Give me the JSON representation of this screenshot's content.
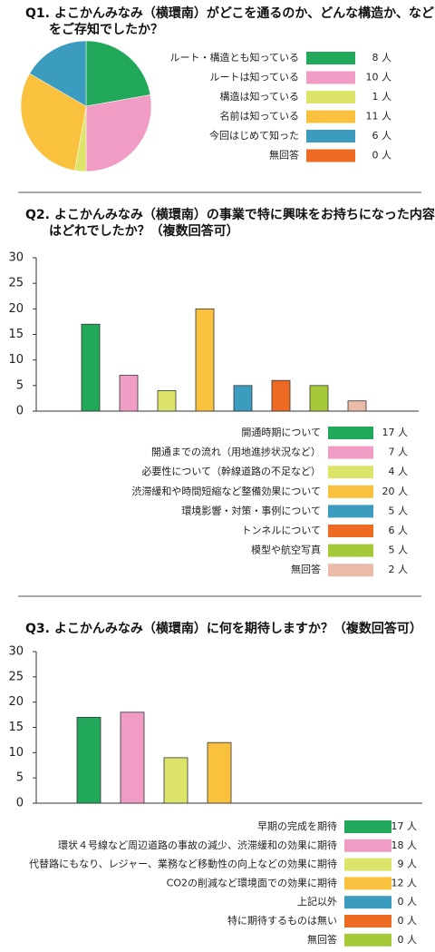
{
  "chart_data": [
    {
      "type": "pie",
      "title": "Q1. よこかんみなみ（横環南）がどこを通るのか、どんな構造か、などをご存知でしたか？",
      "categories": [
        "ルート・構造とも知っている",
        "ルートは知っている",
        "構造は知っている",
        "名前は知っている",
        "今回はじめて知った",
        "無回答"
      ],
      "values": [
        8,
        10,
        1,
        11,
        6,
        0
      ],
      "value_labels": [
        "8 人",
        "10 人",
        "1 人",
        "11 人",
        "6 人",
        "0 人"
      ],
      "colors": [
        "#22a85a",
        "#f09cc4",
        "#dde46a",
        "#f9c13d",
        "#3c9cc0",
        "#ee6a22"
      ]
    },
    {
      "type": "bar",
      "title": "Q2. よこかんみなみ（横環南）の事業で特に興味をお持ちになった内容はどれでしたか？（複数回答可）",
      "categories": [
        "開通時期について",
        "開通までの流れ（用地進捗状況など）",
        "必要性について（幹線道路の不足など）",
        "渋滞緩和や時間短縮など整備効果について",
        "環境影響・対策・事例について",
        "トンネルについて",
        "模型や航空写真",
        "無回答"
      ],
      "values": [
        17,
        7,
        4,
        20,
        5,
        6,
        5,
        2
      ],
      "value_labels": [
        "17 人",
        "7 人",
        "4 人",
        "20 人",
        "5 人",
        "6 人",
        "5 人",
        "2 人"
      ],
      "colors": [
        "#22a85a",
        "#f09cc4",
        "#dde46a",
        "#f9c13d",
        "#3c9cc0",
        "#ee6a22",
        "#a6c93a",
        "#e9bba8"
      ],
      "ylim": [
        0,
        30
      ],
      "yticks": [
        0,
        5,
        10,
        15,
        20,
        25,
        30
      ]
    },
    {
      "type": "bar",
      "title": "Q3. よこかんみなみ（横環南）に何を期待しますか？（複数回答可）",
      "categories": [
        "早期の完成を期待",
        "環状４号線など周辺道路の事故の減少、渋滞緩和の効果に期待",
        "代替路にもなり、レジャー、業務など移動性の向上などの効果に期待",
        "CO2の削減など環境面での効果に期待",
        "上記以外",
        "特に期待するものは無い",
        "無回答"
      ],
      "values": [
        17,
        18,
        9,
        12,
        0,
        0,
        0
      ],
      "value_labels": [
        "17 人",
        "18 人",
        "9 人",
        "12 人",
        "0 人",
        "0 人",
        "0 人"
      ],
      "colors": [
        "#22a85a",
        "#f09cc4",
        "#dde46a",
        "#f9c13d",
        "#3c9cc0",
        "#ee6a22",
        "#a6c93a"
      ],
      "ylim": [
        0,
        30
      ],
      "yticks": [
        0,
        5,
        10,
        15,
        20,
        25,
        30
      ]
    }
  ]
}
